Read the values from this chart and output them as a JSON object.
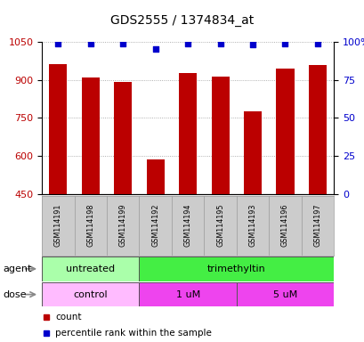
{
  "title": "GDS2555 / 1374834_at",
  "samples": [
    "GSM114191",
    "GSM114198",
    "GSM114199",
    "GSM114192",
    "GSM114194",
    "GSM114195",
    "GSM114193",
    "GSM114196",
    "GSM114197"
  ],
  "counts": [
    960,
    910,
    893,
    585,
    925,
    912,
    775,
    945,
    957
  ],
  "percentiles": [
    99,
    99,
    99,
    95,
    99,
    99,
    98,
    99,
    99
  ],
  "ylim_left": [
    450,
    1050
  ],
  "ylim_right": [
    0,
    100
  ],
  "yticks_left": [
    450,
    600,
    750,
    900,
    1050
  ],
  "ytick_labels_left": [
    "450",
    "600",
    "750",
    "900",
    "1050"
  ],
  "yticks_right": [
    0,
    25,
    50,
    75,
    100
  ],
  "ytick_labels_right": [
    "0",
    "25",
    "50",
    "75",
    "100%"
  ],
  "bar_color": "#bb0000",
  "dot_color": "#0000cc",
  "agent_groups": [
    {
      "label": "untreated",
      "start": 0,
      "end": 3,
      "color": "#aaffaa"
    },
    {
      "label": "trimethyltin",
      "start": 3,
      "end": 9,
      "color": "#44ee44"
    }
  ],
  "dose_groups": [
    {
      "label": "control",
      "start": 0,
      "end": 3,
      "color": "#ffbbff"
    },
    {
      "label": "1 uM",
      "start": 3,
      "end": 6,
      "color": "#ee44ee"
    },
    {
      "label": "5 uM",
      "start": 6,
      "end": 9,
      "color": "#ee44ee"
    }
  ],
  "legend_count_label": "count",
  "legend_percentile_label": "percentile rank within the sample",
  "agent_label": "agent",
  "dose_label": "dose",
  "bg_color": "#ffffff",
  "grid_color": "#999999",
  "sample_bg_color": "#cccccc",
  "sample_border_color": "#999999"
}
